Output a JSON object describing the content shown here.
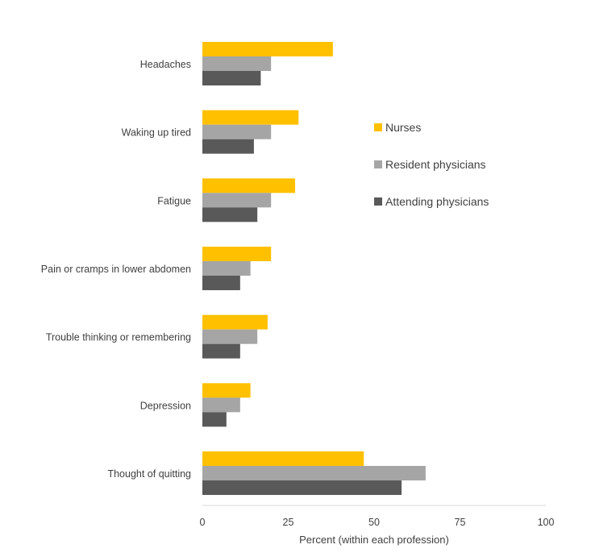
{
  "chart_data": {
    "type": "bar",
    "orientation": "horizontal",
    "categories": [
      "Headaches",
      "Waking up tired",
      "Fatigue",
      "Pain or cramps in lower abdomen",
      "Trouble thinking or remembering",
      "Depression",
      "Thought of quitting"
    ],
    "series": [
      {
        "name": "Nurses",
        "color": "#FFC000",
        "values": [
          38,
          28,
          27,
          20,
          19,
          14,
          47
        ]
      },
      {
        "name": "Resident physicians",
        "color": "#A5A5A5",
        "values": [
          20,
          20,
          20,
          14,
          16,
          11,
          65
        ]
      },
      {
        "name": "Attending physicians",
        "color": "#595959",
        "values": [
          17,
          15,
          16,
          11,
          11,
          7,
          58
        ]
      }
    ],
    "xlabel": "Percent (within each profession)",
    "xlim": [
      0,
      100
    ],
    "xticks": [
      "0",
      "25",
      "50",
      "75",
      "100"
    ],
    "grid": false,
    "legend_position": "right"
  }
}
